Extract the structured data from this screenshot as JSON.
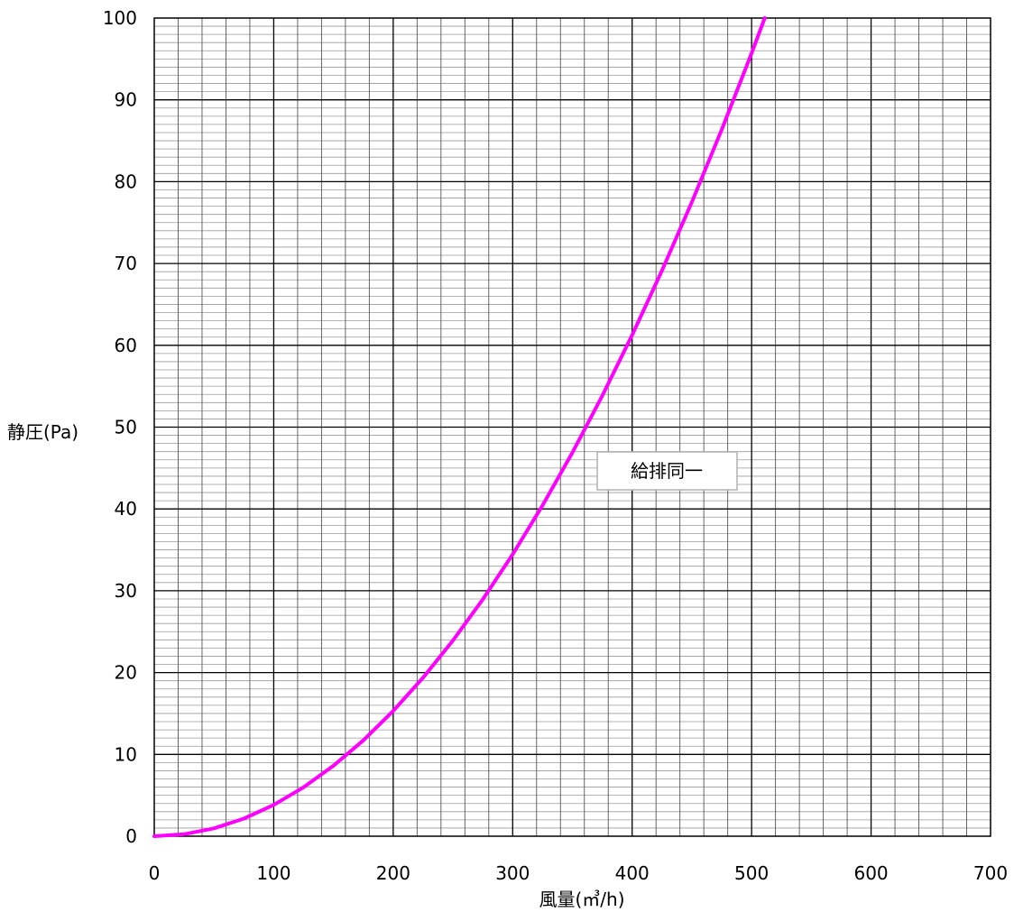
{
  "chart_data": {
    "type": "line",
    "title": "",
    "xlabel": "風量(㎥/h)",
    "ylabel": "静圧(Pa)",
    "xlim": [
      0,
      700
    ],
    "ylim": [
      0,
      100
    ],
    "x_ticks": [
      0,
      100,
      200,
      300,
      400,
      500,
      600,
      700
    ],
    "y_ticks": [
      0,
      10,
      20,
      30,
      40,
      50,
      60,
      70,
      80,
      90,
      100
    ],
    "x_minor_step": 20,
    "y_minor_step": 1,
    "grid": true,
    "legend": "none",
    "annotation": "給排同一",
    "series": [
      {
        "color": "#ff00ff",
        "x": [
          0,
          25,
          50,
          75,
          100,
          125,
          150,
          175,
          200,
          225,
          250,
          275,
          300,
          325,
          350,
          375,
          400,
          425,
          450,
          475,
          500,
          511
        ],
        "y": [
          0,
          0.24,
          0.96,
          2.15,
          3.83,
          5.98,
          8.61,
          11.72,
          15.31,
          19.38,
          23.93,
          28.95,
          34.45,
          40.43,
          46.89,
          53.83,
          61.25,
          69.14,
          77.51,
          86.36,
          95.69,
          100
        ]
      }
    ]
  }
}
